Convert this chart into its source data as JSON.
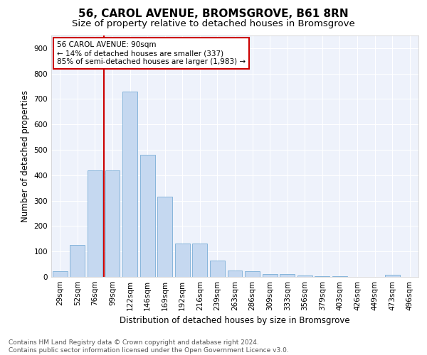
{
  "title": "56, CAROL AVENUE, BROMSGROVE, B61 8RN",
  "subtitle": "Size of property relative to detached houses in Bromsgrove",
  "xlabel": "Distribution of detached houses by size in Bromsgrove",
  "ylabel": "Number of detached properties",
  "footnote": "Contains HM Land Registry data © Crown copyright and database right 2024.\nContains public sector information licensed under the Open Government Licence v3.0.",
  "bar_labels": [
    "29sqm",
    "52sqm",
    "76sqm",
    "99sqm",
    "122sqm",
    "146sqm",
    "169sqm",
    "192sqm",
    "216sqm",
    "239sqm",
    "263sqm",
    "286sqm",
    "309sqm",
    "333sqm",
    "356sqm",
    "379sqm",
    "403sqm",
    "426sqm",
    "449sqm",
    "473sqm",
    "496sqm"
  ],
  "bar_values": [
    22,
    125,
    420,
    420,
    730,
    480,
    315,
    130,
    130,
    65,
    25,
    22,
    12,
    10,
    5,
    3,
    2,
    1,
    1,
    8,
    1
  ],
  "bar_color": "#c5d8f0",
  "bar_edge_color": "#7aaed6",
  "vline_color": "#cc0000",
  "annotation_text": "56 CAROL AVENUE: 90sqm\n← 14% of detached houses are smaller (337)\n85% of semi-detached houses are larger (1,983) →",
  "annotation_box_color": "#cc0000",
  "ylim": [
    0,
    950
  ],
  "yticks": [
    0,
    100,
    200,
    300,
    400,
    500,
    600,
    700,
    800,
    900
  ],
  "background_color": "#eef2fb",
  "grid_color": "#ffffff",
  "title_fontsize": 11,
  "subtitle_fontsize": 9.5,
  "axis_label_fontsize": 8.5,
  "tick_fontsize": 7.5,
  "footnote_fontsize": 6.5
}
